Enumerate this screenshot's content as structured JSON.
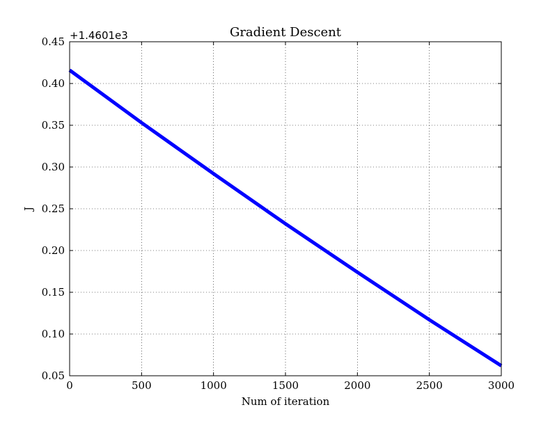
{
  "chart_data": {
    "type": "line",
    "title": "Gradient Descent",
    "xlabel": "Num of iteration",
    "ylabel": "J",
    "y_offset_label": "+1.4601e3",
    "xlim": [
      0,
      3000
    ],
    "ylim": [
      0.05,
      0.45
    ],
    "xticks": [
      0,
      500,
      1000,
      1500,
      2000,
      2500,
      3000
    ],
    "xtick_labels": [
      "0",
      "500",
      "1000",
      "1500",
      "2000",
      "2500",
      "3000"
    ],
    "yticks": [
      0.05,
      0.1,
      0.15,
      0.2,
      0.25,
      0.3,
      0.35,
      0.4,
      0.45
    ],
    "ytick_labels": [
      "0.05",
      "0.10",
      "0.15",
      "0.20",
      "0.25",
      "0.30",
      "0.35",
      "0.40",
      "0.45"
    ],
    "grid": true,
    "series": [
      {
        "color": "#0000ff",
        "x": [
          0,
          500,
          1000,
          1500,
          2000,
          2500,
          3000
        ],
        "y": [
          0.416,
          0.353,
          0.292,
          0.232,
          0.174,
          0.117,
          0.062
        ]
      }
    ]
  }
}
